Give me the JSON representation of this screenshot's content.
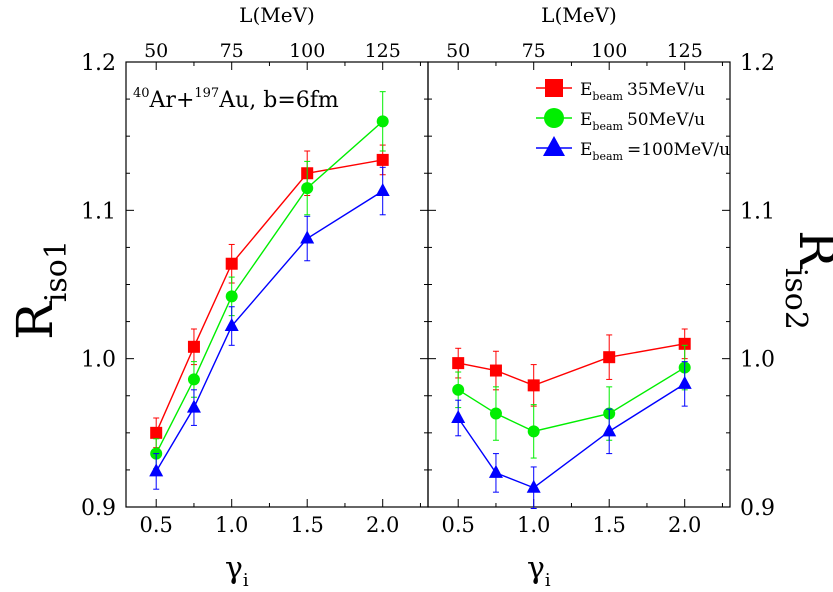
{
  "chart_data": [
    {
      "type": "line",
      "panel": "left",
      "annotation": {
        "pre1": "40",
        "text1": "Ar+",
        "pre2": "197",
        "text2": "Au, b=6fm"
      },
      "xlabel": {
        "main": "γ",
        "sub": "i"
      },
      "ylabel": {
        "main": "R",
        "sub": "iso1"
      },
      "top_xlabel": "L(MeV)",
      "x": [
        0.5,
        0.75,
        1.0,
        1.5,
        2.0
      ],
      "xticks": [
        "0.5",
        "1.0",
        "1.5",
        "2.0"
      ],
      "top_ticks": [
        "50",
        "75",
        "100",
        "125"
      ],
      "yticks": [
        "0.9",
        "1.0",
        "1.1",
        "1.2"
      ],
      "ylim": [
        0.9,
        1.2
      ],
      "xlim": [
        0.3,
        2.3
      ],
      "series": [
        {
          "name": "35MeV/u",
          "color": "#ff0000",
          "marker": "square",
          "values": [
            0.95,
            1.008,
            1.064,
            1.125,
            1.134
          ],
          "errors": [
            0.01,
            0.012,
            0.013,
            0.015,
            0.01
          ]
        },
        {
          "name": "50MeV/u",
          "color": "#00ee00",
          "marker": "circle",
          "values": [
            0.936,
            0.986,
            1.042,
            1.115,
            1.16
          ],
          "errors": [
            0.01,
            0.012,
            0.013,
            0.018,
            0.02
          ]
        },
        {
          "name": "=100MeV/u",
          "color": "#0000ff",
          "marker": "triangle",
          "values": [
            0.924,
            0.967,
            1.022,
            1.081,
            1.113
          ],
          "errors": [
            0.012,
            0.012,
            0.013,
            0.015,
            0.016
          ]
        }
      ]
    },
    {
      "type": "line",
      "panel": "right",
      "xlabel": {
        "main": "γ",
        "sub": "i"
      },
      "ylabel": {
        "main": "R",
        "sub": "iso2"
      },
      "top_xlabel": "L(MeV)",
      "x": [
        0.5,
        0.75,
        1.0,
        1.5,
        2.0
      ],
      "xticks": [
        "0.5",
        "1.0",
        "1.5",
        "2.0"
      ],
      "top_ticks": [
        "50",
        "75",
        "100",
        "125"
      ],
      "yticks": [
        "0.9",
        "1.0",
        "1.1",
        "1.2"
      ],
      "ylim": [
        0.9,
        1.2
      ],
      "xlim": [
        0.3,
        2.3
      ],
      "legend": {
        "placement": "top-right",
        "label_main": "E",
        "label_sub": "beam"
      },
      "series": [
        {
          "name": "35MeV/u",
          "color": "#ff0000",
          "marker": "square",
          "values": [
            0.997,
            0.992,
            0.982,
            1.001,
            1.01
          ],
          "errors": [
            0.01,
            0.013,
            0.014,
            0.015,
            0.01
          ]
        },
        {
          "name": "50MeV/u",
          "color": "#00ee00",
          "marker": "circle",
          "values": [
            0.979,
            0.963,
            0.951,
            0.963,
            0.994
          ],
          "errors": [
            0.012,
            0.018,
            0.018,
            0.018,
            0.015
          ]
        },
        {
          "name": "=100MeV/u",
          "color": "#0000ff",
          "marker": "triangle",
          "values": [
            0.96,
            0.923,
            0.913,
            0.951,
            0.983
          ],
          "errors": [
            0.012,
            0.013,
            0.014,
            0.015,
            0.015
          ]
        }
      ]
    }
  ]
}
